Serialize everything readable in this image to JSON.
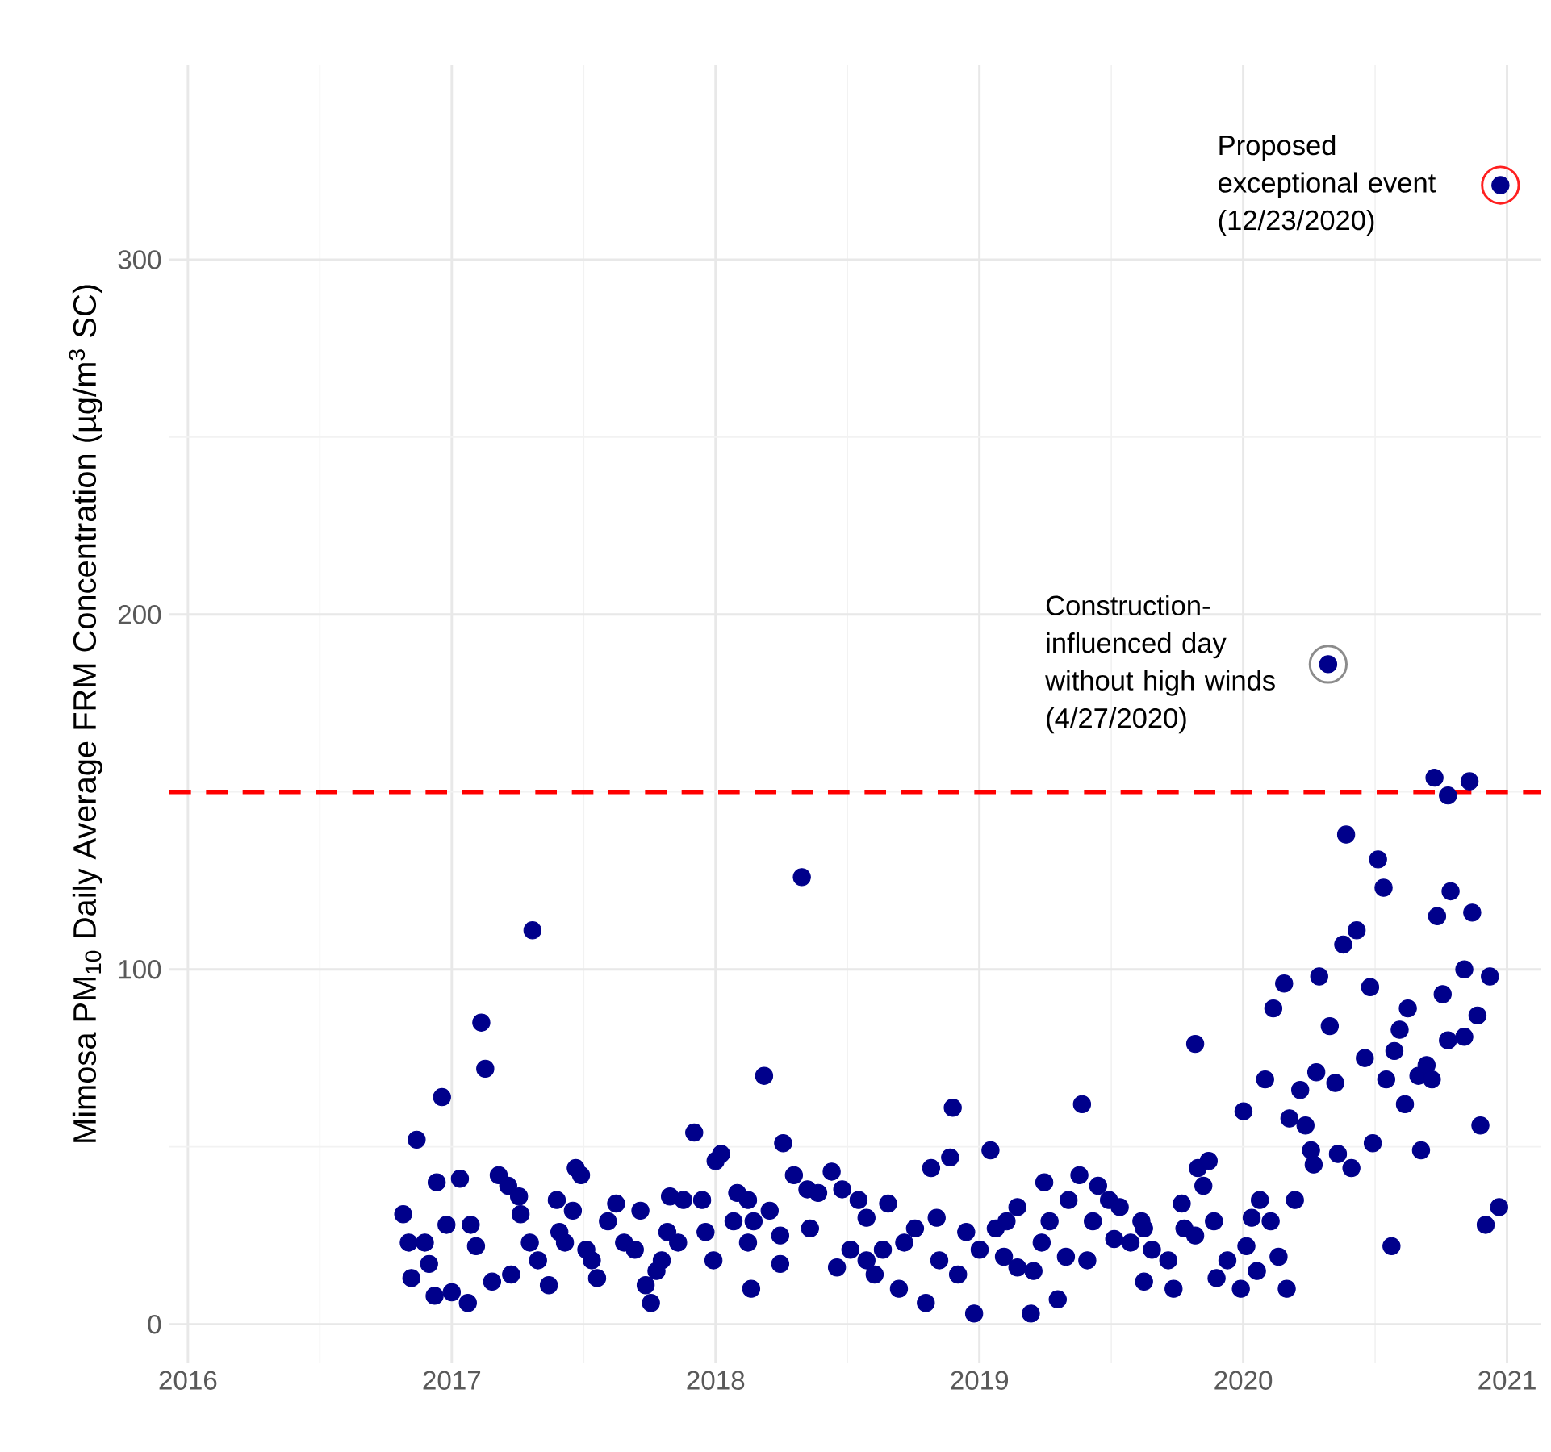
{
  "chart_data": {
    "type": "scatter",
    "ylabel": "Mimosa PM$_{10}$ Daily Average FRM Concentration (µg/m$^{3}$ SC)",
    "x": [
      2016.816,
      2016.837,
      2016.847,
      2016.867,
      2016.898,
      2016.914,
      2016.935,
      2016.943,
      2016.963,
      2016.98,
      2017.0,
      2017.031,
      2017.061,
      2017.072,
      2017.092,
      2017.112,
      2017.127,
      2017.153,
      2017.178,
      2017.214,
      2017.225,
      2017.255,
      2017.261,
      2017.296,
      2017.306,
      2017.327,
      2017.368,
      2017.398,
      2017.408,
      2017.429,
      2017.459,
      2017.47,
      2017.49,
      2017.51,
      2017.531,
      2017.551,
      2017.592,
      2017.623,
      2017.653,
      2017.694,
      2017.715,
      2017.735,
      2017.755,
      2017.776,
      2017.796,
      2017.817,
      2017.827,
      2017.858,
      2017.878,
      2017.919,
      2017.949,
      2017.962,
      2017.992,
      2018.0,
      2018.021,
      2018.068,
      2018.082,
      2018.123,
      2018.123,
      2018.135,
      2018.144,
      2018.184,
      2018.205,
      2018.245,
      2018.245,
      2018.256,
      2018.297,
      2018.327,
      2018.348,
      2018.358,
      2018.389,
      2018.44,
      2018.46,
      2018.48,
      2018.511,
      2018.542,
      2018.572,
      2018.572,
      2018.603,
      2018.634,
      2018.654,
      2018.695,
      2018.715,
      2018.756,
      2018.797,
      2018.817,
      2018.838,
      2018.848,
      2018.889,
      2018.899,
      2018.919,
      2018.95,
      2018.98,
      2019.001,
      2019.042,
      2019.062,
      2019.093,
      2019.103,
      2019.144,
      2019.144,
      2019.195,
      2019.205,
      2019.236,
      2019.246,
      2019.266,
      2019.297,
      2019.328,
      2019.338,
      2019.379,
      2019.389,
      2019.409,
      2019.43,
      2019.45,
      2019.491,
      2019.511,
      2019.532,
      2019.573,
      2019.614,
      2019.624,
      2019.624,
      2019.654,
      2019.716,
      2019.736,
      2019.767,
      2019.777,
      2019.818,
      2019.818,
      2019.828,
      2019.849,
      2019.869,
      2019.889,
      2019.899,
      2019.94,
      2019.991,
      2020.001,
      2020.012,
      2020.032,
      2020.052,
      2020.063,
      2020.083,
      2020.104,
      2020.114,
      2020.134,
      2020.155,
      2020.165,
      2020.175,
      2020.196,
      2020.216,
      2020.236,
      2020.257,
      2020.267,
      2020.277,
      2020.288,
      2020.322,
      2020.328,
      2020.349,
      2020.359,
      2020.379,
      2020.39,
      2020.41,
      2020.43,
      2020.461,
      2020.481,
      2020.491,
      2020.511,
      2020.532,
      2020.542,
      2020.562,
      2020.573,
      2020.593,
      2020.613,
      2020.624,
      2020.664,
      2020.674,
      2020.695,
      2020.715,
      2020.725,
      2020.735,
      2020.756,
      2020.776,
      2020.776,
      2020.786,
      2020.838,
      2020.838,
      2020.858,
      2020.868,
      2020.888,
      2020.899,
      2020.919,
      2020.935,
      2020.97,
      2020.975
    ],
    "values": [
      31,
      23,
      13,
      52,
      23,
      17,
      8,
      40,
      64,
      28,
      9,
      41,
      6,
      28,
      22,
      85,
      72,
      12,
      42,
      39,
      14,
      36,
      31,
      23,
      111,
      18,
      11,
      35,
      26,
      23,
      32,
      44,
      42,
      21,
      18,
      13,
      29,
      34,
      23,
      21,
      32,
      11,
      6,
      15,
      18,
      26,
      36,
      23,
      35,
      54,
      35,
      26,
      18,
      46,
      48,
      29,
      37,
      35,
      23,
      10,
      29,
      70,
      32,
      25,
      17,
      51,
      42,
      126,
      38,
      27,
      37,
      43,
      16,
      38,
      21,
      35,
      30,
      18,
      14,
      21,
      34,
      10,
      23,
      27,
      6,
      44,
      30,
      18,
      47,
      61,
      14,
      26,
      3,
      21,
      49,
      27,
      19,
      29,
      33,
      16,
      3,
      15,
      23,
      40,
      29,
      7,
      19,
      35,
      42,
      62,
      18,
      29,
      39,
      35,
      24,
      33,
      23,
      29,
      12,
      27,
      21,
      18,
      10,
      34,
      27,
      25,
      79,
      44,
      39,
      46,
      29,
      13,
      18,
      10,
      60,
      22,
      30,
      15,
      35,
      69,
      29,
      89,
      19,
      96,
      10,
      58,
      35,
      66,
      56,
      49,
      45,
      71,
      98,
      186,
      84,
      68,
      48,
      107,
      138,
      44,
      111,
      75,
      95,
      51,
      131,
      123,
      69,
      22,
      77,
      83,
      62,
      89,
      70,
      49,
      73,
      69,
      154,
      115,
      93,
      149,
      80,
      122,
      100,
      81,
      153,
      116,
      87,
      56,
      28,
      98,
      33,
      321
    ],
    "color": "#00008b",
    "marker": "circle",
    "xlim": [
      2015.93,
      2021.13
    ],
    "xticks": [
      2016,
      2017,
      2018,
      2019,
      2020,
      2021
    ],
    "ylim": [
      -11,
      355
    ],
    "yticks": [
      0,
      100,
      200,
      300
    ],
    "grid": true,
    "ref_lines": [
      {
        "axis": "y",
        "value": 150,
        "color": "#ff0000",
        "line_style": "dashed"
      }
    ],
    "annotations": [
      {
        "text": "Proposed exceptional event (12/23/2020)",
        "x": 2020.975,
        "y": 321
      },
      {
        "text": "Construction-influenced day without high winds (4/27/2020)",
        "x": 2020.322,
        "y": 186
      }
    ]
  }
}
